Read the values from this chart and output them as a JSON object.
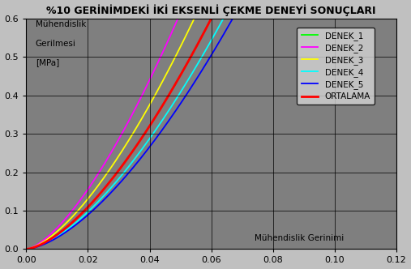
{
  "title": "%10 GERİNİMDEKİ İKİ EKSENLİ ÇEKME DENEYİ SONUÇLARI",
  "ylabel_line1": "Mühendislik",
  "ylabel_line2": "Gerilmesi",
  "ylabel_line3": "[MPa]",
  "xlabel": "Mühendislik Gerinimi",
  "xlim": [
    0,
    0.12
  ],
  "ylim": [
    0,
    0.6
  ],
  "xticks": [
    0,
    0.02,
    0.04,
    0.06,
    0.08,
    0.1,
    0.12
  ],
  "yticks": [
    0,
    0.1,
    0.2,
    0.3,
    0.4,
    0.5,
    0.6
  ],
  "background_color": "#c0c0c0",
  "plot_bg_color": "#7f7f7f",
  "legend_bg_color": "#d4d4d4",
  "series": [
    {
      "name": "DENEK_1",
      "color": "#00ff00",
      "a": 47.0,
      "b": 1.55
    },
    {
      "name": "DENEK_2",
      "color": "#ff00ff",
      "a": 55.0,
      "b": 1.5
    },
    {
      "name": "DENEK_3",
      "color": "#ffff00",
      "a": 50.0,
      "b": 1.52
    },
    {
      "name": "DENEK_4",
      "color": "#00ffff",
      "a": 45.0,
      "b": 1.57
    },
    {
      "name": "DENEK_5",
      "color": "#0000ff",
      "a": 43.0,
      "b": 1.58
    },
    {
      "name": "ORTALAMA",
      "color": "#ff0000",
      "a": 47.0,
      "b": 1.55
    }
  ]
}
